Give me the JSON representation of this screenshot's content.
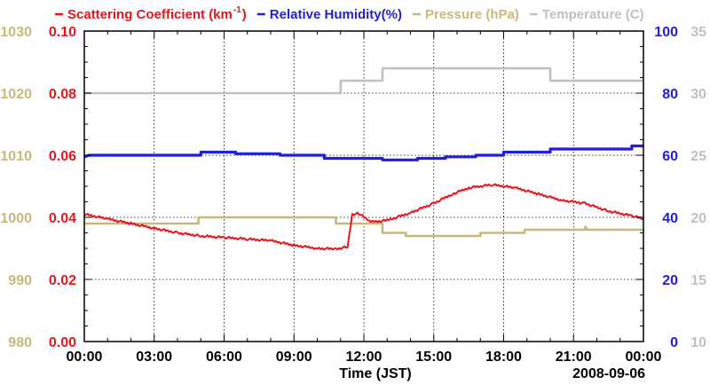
{
  "chart_data": {
    "type": "line",
    "title": "",
    "xlabel": "Time (JST)",
    "date_label": "2008-09-06",
    "x_range_hours": [
      0,
      24
    ],
    "x_ticks": [
      "00:00",
      "03:00",
      "06:00",
      "09:00",
      "12:00",
      "15:00",
      "18:00",
      "21:00",
      "00:00"
    ],
    "grid": true,
    "legend_placement": "top",
    "legend": [
      {
        "label": "Scattering Coefficient (km",
        "sup": "-1",
        "suffix": ")",
        "color": "#e8141e"
      },
      {
        "label": "Relative Humidity(%)",
        "color": "#1f1fd6"
      },
      {
        "label": "Pressure (hPa)",
        "color": "#c8b87a"
      },
      {
        "label": "Temperature (C)",
        "color": "#c0c0c0"
      }
    ],
    "axes": {
      "scattering": {
        "range": [
          0.0,
          0.1
        ],
        "ticks": [
          "0.00",
          "0.02",
          "0.04",
          "0.06",
          "0.08",
          "0.10"
        ],
        "color": "#e8141e"
      },
      "pressure": {
        "range": [
          980,
          1030
        ],
        "ticks": [
          "980",
          "990",
          "1000",
          "1010",
          "1020",
          "1030"
        ],
        "color": "#c8b87a"
      },
      "humidity": {
        "range": [
          0,
          100
        ],
        "ticks": [
          "0",
          "20",
          "40",
          "60",
          "80",
          "100"
        ],
        "color": "#1f1fd6"
      },
      "temperature": {
        "range": [
          10,
          35
        ],
        "ticks": [
          "10",
          "15",
          "20",
          "25",
          "30",
          "35"
        ],
        "color": "#c0c0c0"
      }
    },
    "series": [
      {
        "name": "Scattering Coefficient",
        "axis": "scattering",
        "color": "#e8141e",
        "step": false,
        "points": [
          [
            0,
            0.041
          ],
          [
            1,
            0.0395
          ],
          [
            2,
            0.038
          ],
          [
            3,
            0.0365
          ],
          [
            4,
            0.035
          ],
          [
            5,
            0.034
          ],
          [
            6,
            0.0335
          ],
          [
            7,
            0.033
          ],
          [
            8,
            0.0325
          ],
          [
            9,
            0.031
          ],
          [
            10,
            0.03
          ],
          [
            10.8,
            0.0298
          ],
          [
            11.3,
            0.0305
          ],
          [
            11.5,
            0.041
          ],
          [
            11.8,
            0.0412
          ],
          [
            12.3,
            0.0385
          ],
          [
            13,
            0.039
          ],
          [
            14,
            0.0415
          ],
          [
            15,
            0.0445
          ],
          [
            15.8,
            0.0475
          ],
          [
            16.5,
            0.0495
          ],
          [
            17.5,
            0.0505
          ],
          [
            18.5,
            0.0495
          ],
          [
            19.5,
            0.0475
          ],
          [
            20.5,
            0.0455
          ],
          [
            21.5,
            0.0445
          ],
          [
            22.5,
            0.042
          ],
          [
            23.5,
            0.0405
          ],
          [
            24,
            0.0395
          ]
        ]
      },
      {
        "name": "Relative Humidity",
        "axis": "humidity",
        "color": "#1f1fd6",
        "step": true,
        "points": [
          [
            0,
            59.5
          ],
          [
            0.2,
            60
          ],
          [
            5,
            60
          ],
          [
            5,
            61
          ],
          [
            6.5,
            61
          ],
          [
            6.5,
            60.5
          ],
          [
            8.4,
            60.5
          ],
          [
            8.4,
            60
          ],
          [
            10.3,
            60
          ],
          [
            10.3,
            59
          ],
          [
            12.8,
            59
          ],
          [
            12.8,
            58.5
          ],
          [
            14.3,
            58.5
          ],
          [
            14.3,
            59
          ],
          [
            15.5,
            59
          ],
          [
            15.5,
            59.5
          ],
          [
            16.8,
            59.5
          ],
          [
            16.8,
            60
          ],
          [
            18,
            60
          ],
          [
            18,
            61
          ],
          [
            20,
            61
          ],
          [
            20,
            62
          ],
          [
            23.5,
            62
          ],
          [
            23.5,
            63
          ],
          [
            24,
            63
          ]
        ]
      },
      {
        "name": "Pressure",
        "axis": "pressure",
        "color": "#c8b87a",
        "step": true,
        "points": [
          [
            0,
            999
          ],
          [
            4.9,
            999
          ],
          [
            4.9,
            1000
          ],
          [
            10.8,
            1000
          ],
          [
            10.8,
            999
          ],
          [
            12.8,
            999
          ],
          [
            12.8,
            997.5
          ],
          [
            13.8,
            997.5
          ],
          [
            13.8,
            997
          ],
          [
            17,
            997
          ],
          [
            17,
            997.5
          ],
          [
            18.9,
            997.5
          ],
          [
            18.9,
            998
          ],
          [
            21.5,
            998
          ],
          [
            21.5,
            998.5
          ],
          [
            21.6,
            998
          ],
          [
            24,
            998
          ]
        ]
      },
      {
        "name": "Temperature",
        "axis": "temperature",
        "color": "#c0c0c0",
        "step": true,
        "points": [
          [
            0,
            30
          ],
          [
            11,
            30
          ],
          [
            11,
            31
          ],
          [
            12.8,
            31
          ],
          [
            12.8,
            32
          ],
          [
            20,
            32
          ],
          [
            20,
            31
          ],
          [
            24,
            31
          ]
        ]
      }
    ]
  }
}
